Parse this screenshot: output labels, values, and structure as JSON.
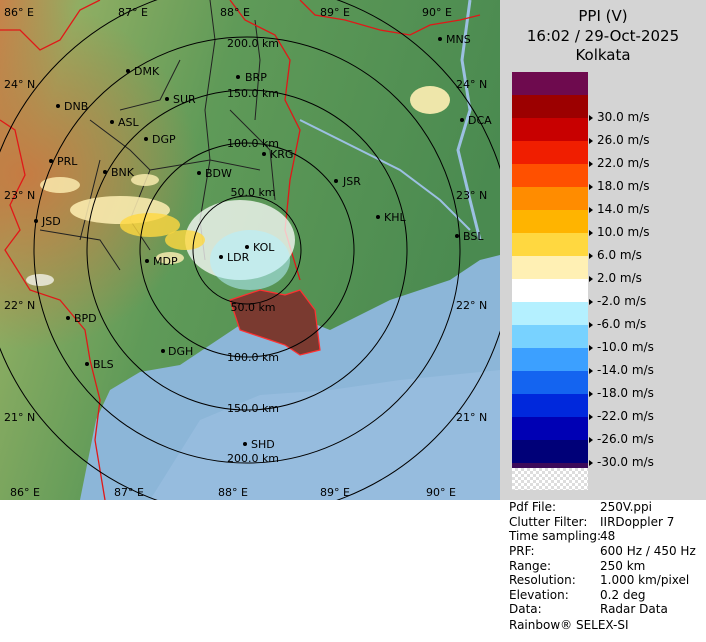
{
  "title": {
    "product": "PPI (V)",
    "datetime": "16:02 / 29-Oct-2025",
    "station": "Kolkata"
  },
  "legend": [
    {
      "color": "#6e0a4e",
      "label": ""
    },
    {
      "color": "#9c0000",
      "label": "30.0 m/s"
    },
    {
      "color": "#c80000",
      "label": "26.0 m/s"
    },
    {
      "color": "#f01e00",
      "label": "22.0 m/s"
    },
    {
      "color": "#ff5000",
      "label": "18.0 m/s"
    },
    {
      "color": "#ff8c00",
      "label": "14.0 m/s"
    },
    {
      "color": "#ffb400",
      "label": "10.0 m/s"
    },
    {
      "color": "#ffd840",
      "label": "6.0 m/s"
    },
    {
      "color": "#fff0b4",
      "label": "2.0 m/s"
    },
    {
      "color": "#ffffff",
      "label": "-2.0 m/s"
    },
    {
      "color": "#b4f0ff",
      "label": "-6.0 m/s"
    },
    {
      "color": "#78d2ff",
      "label": "-10.0 m/s"
    },
    {
      "color": "#3ca0ff",
      "label": "-14.0 m/s"
    },
    {
      "color": "#1464f0",
      "label": "-18.0 m/s"
    },
    {
      "color": "#0028dc",
      "label": "-22.0 m/s"
    },
    {
      "color": "#0000b4",
      "label": "-26.0 m/s"
    },
    {
      "color": "#000078",
      "label": "-30.0 m/s"
    },
    {
      "color": "#3c0a5a",
      "label": ""
    }
  ],
  "info": [
    {
      "key": "Pdf File:",
      "value": "250V.ppi"
    },
    {
      "key": "Clutter Filter:",
      "value": "IIRDoppler 7"
    },
    {
      "key": "Time sampling:",
      "value": "48"
    },
    {
      "key": "PRF:",
      "value": "600 Hz / 450 Hz"
    },
    {
      "key": "Range:",
      "value": "250 km"
    },
    {
      "key": "Resolution:",
      "value": "1.000 km/pixel"
    },
    {
      "key": "Elevation:",
      "value": "0.2 deg"
    },
    {
      "key": "Data:",
      "value": "Radar Data"
    }
  ],
  "footer": "Rainbow® SELEX-SI",
  "map": {
    "top_lon_labels": [
      "86° E",
      "87° E",
      "88° E",
      "89° E",
      "90° E"
    ],
    "bottom_lon_labels": [
      "86° E",
      "87° E",
      "88° E",
      "89° E",
      "90° E"
    ],
    "left_lat_labels": [
      "24° N",
      "23° N",
      "22° N",
      "21° N"
    ],
    "right_lat_labels": [
      "24° N",
      "23° N",
      "22° N",
      "21° N"
    ],
    "range_labels_north": [
      "200.0 km",
      "150.0 km",
      "100.0 km",
      "50.0 km"
    ],
    "range_labels_south": [
      "50.0 km",
      "100.0 km",
      "150.0 km",
      "200.0 km"
    ],
    "stations": [
      "MNS",
      "DMK",
      "BRP",
      "DNB",
      "SUR",
      "DCA",
      "ASL",
      "DGP",
      "KRG",
      "PRL",
      "BNK",
      "BDW",
      "JSR",
      "KHL",
      "JSD",
      "KOL",
      "MDP",
      "LDR",
      "BSL",
      "BPD",
      "DGH",
      "BLS",
      "SHD"
    ]
  }
}
